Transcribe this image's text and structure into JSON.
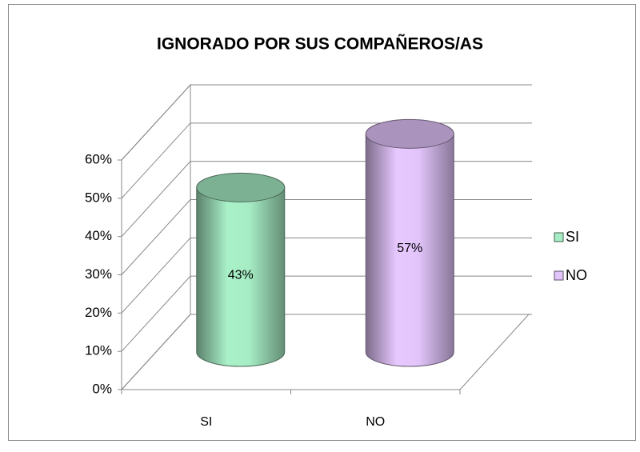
{
  "chart_data": {
    "type": "bar",
    "title": "IGNORADO POR SUS COMPAÑEROS/AS",
    "categories": [
      "SI",
      "NO"
    ],
    "values": [
      43,
      57
    ],
    "value_labels": [
      "43%",
      "57%"
    ],
    "colors": [
      "#a6ecc4",
      "#e2c4fb"
    ],
    "ylim": [
      0,
      60
    ],
    "yticks": [
      {
        "value": 0,
        "label": "0%"
      },
      {
        "value": 10,
        "label": "10%"
      },
      {
        "value": 20,
        "label": "20%"
      },
      {
        "value": 30,
        "label": "30%"
      },
      {
        "value": 40,
        "label": "40%"
      },
      {
        "value": 50,
        "label": "50%"
      },
      {
        "value": 60,
        "label": "60%"
      }
    ],
    "grid": true,
    "legend": "right"
  }
}
